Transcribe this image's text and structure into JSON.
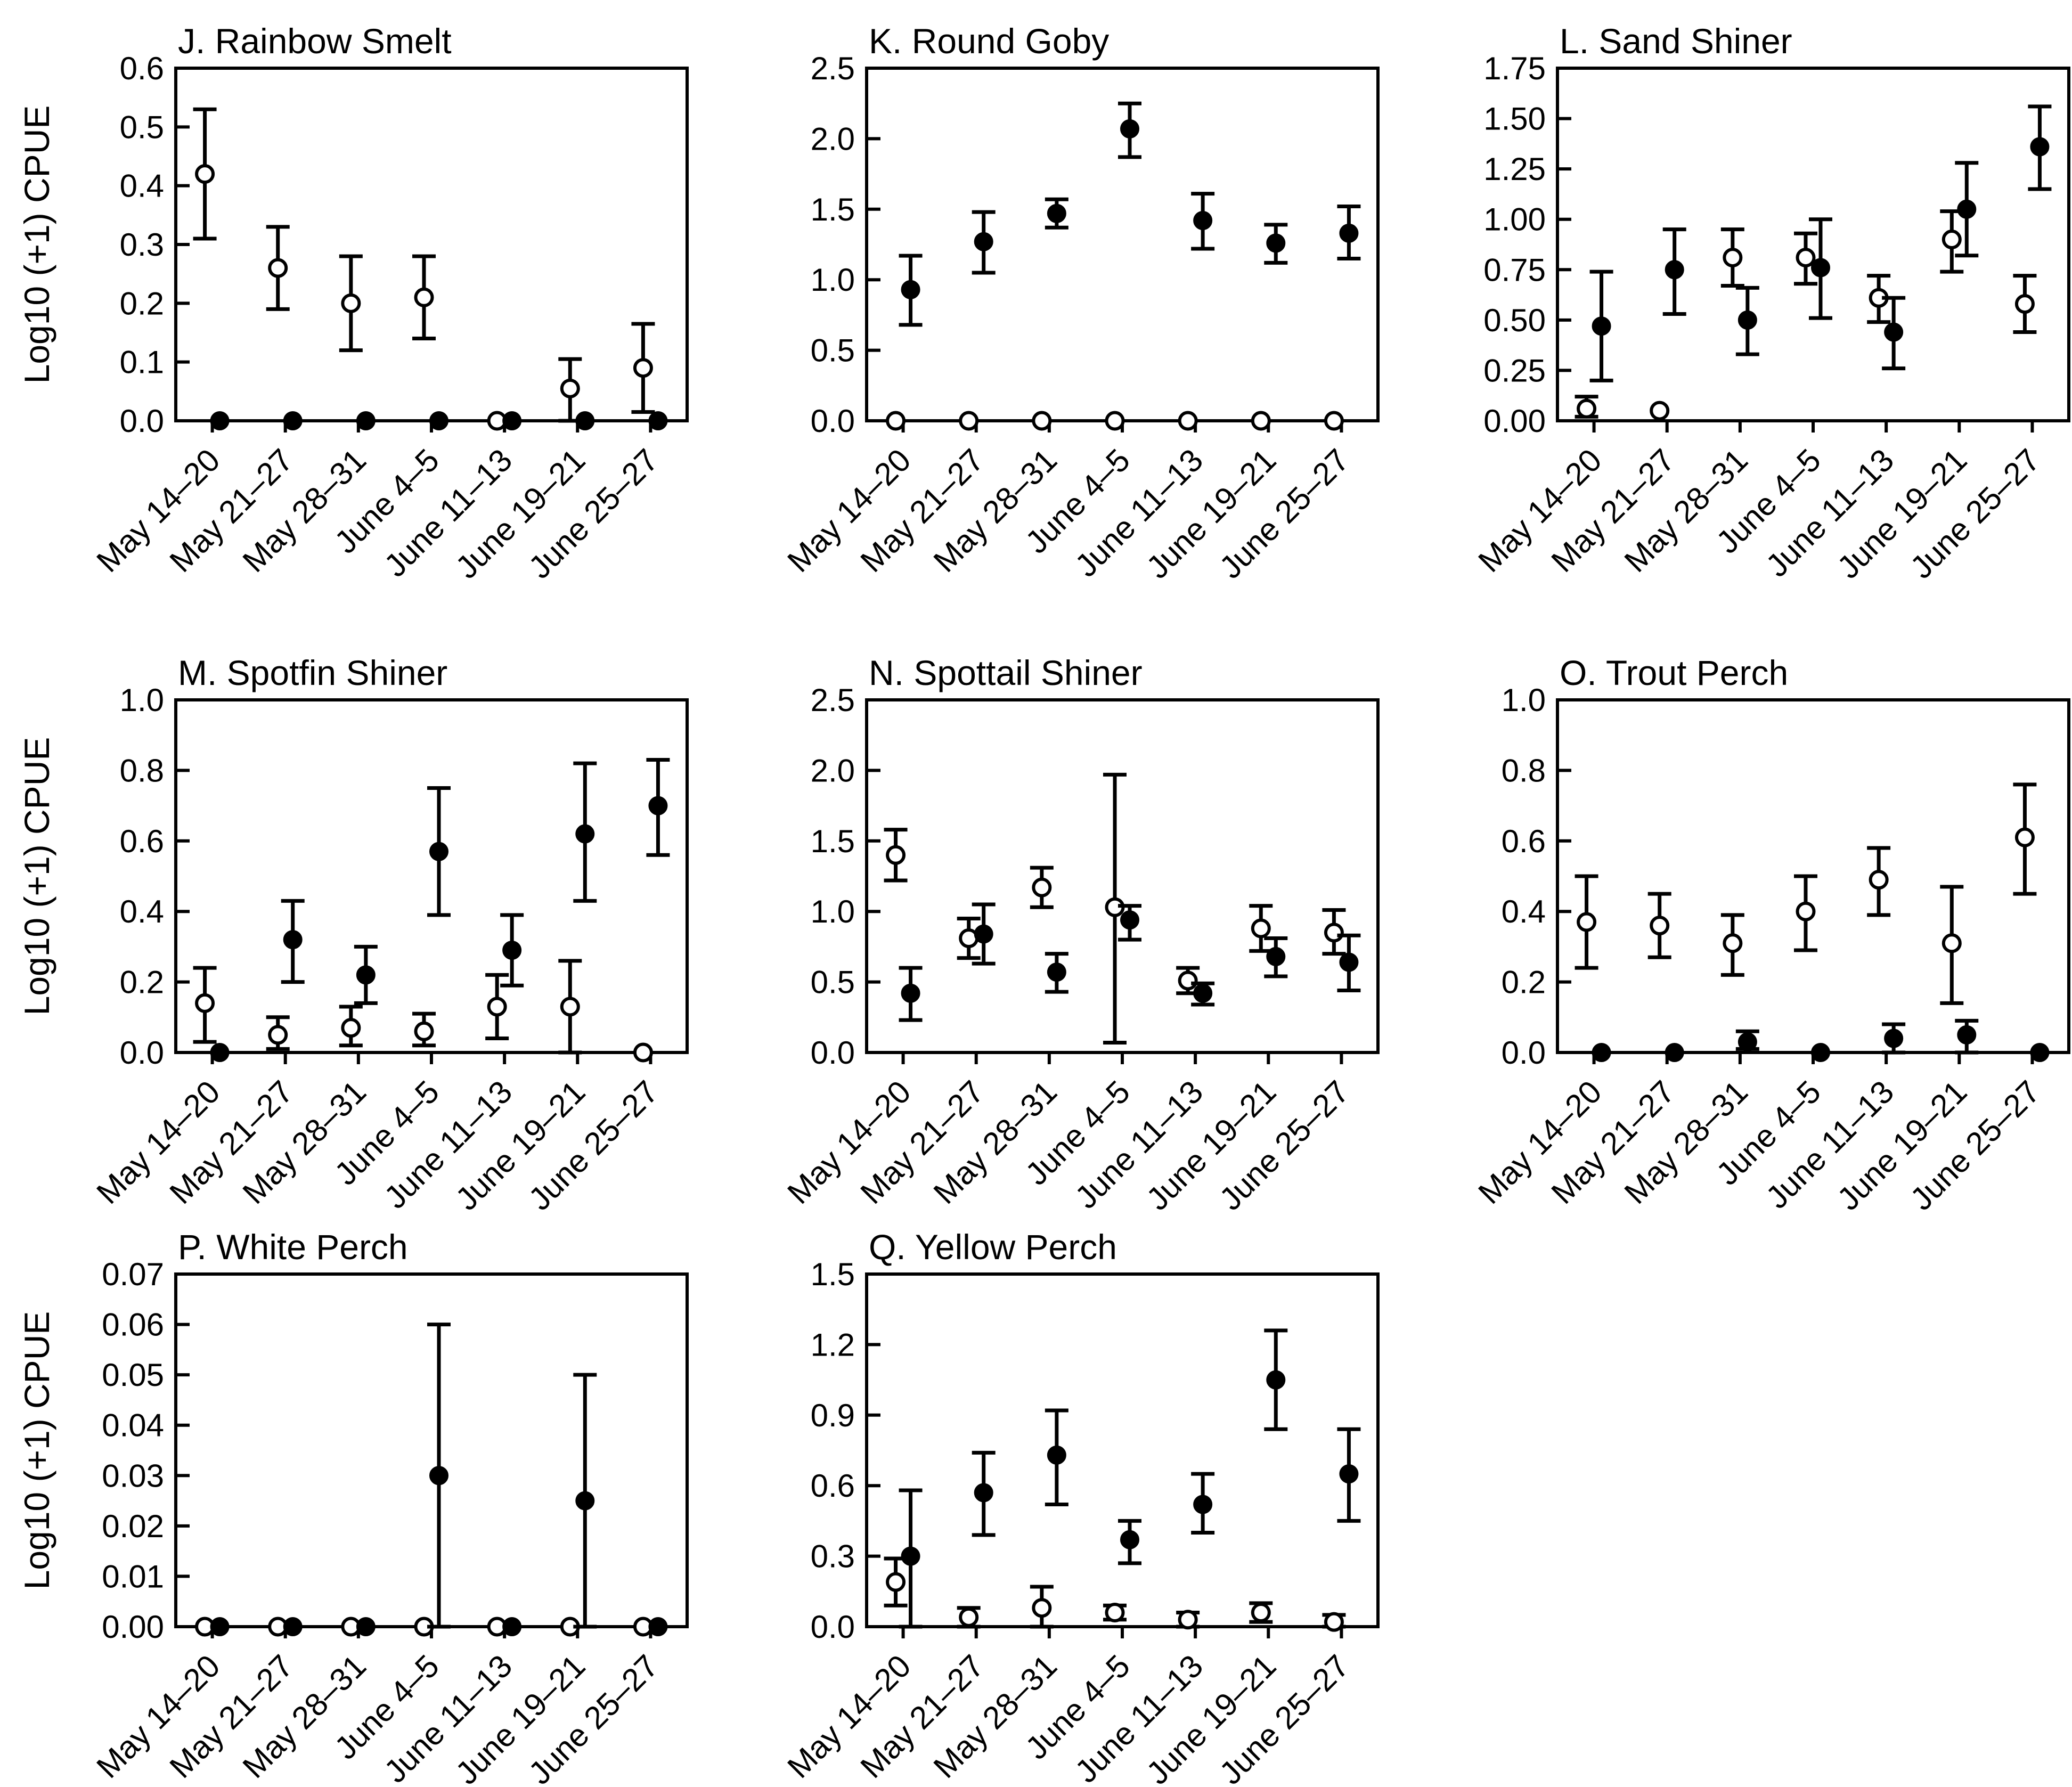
{
  "figure": {
    "ylabel": "Log10 (+1) CPUE",
    "background": "#ffffff",
    "ink": "#000000"
  },
  "categories": [
    "May 14–20",
    "May 21–27",
    "May 28–31",
    "June 4–5",
    "June 11–13",
    "June 19–21",
    "June 25–27"
  ],
  "chart_data": [
    {
      "panel": "J",
      "title": "J. Rainbow Smelt",
      "type": "scatter",
      "row": 1,
      "col": 1,
      "show_ylabel": true,
      "ylim": [
        0,
        0.6
      ],
      "ystep": 0.1,
      "ydecimals": 1,
      "xlabel": "",
      "ylabel": "Log10 (+1) CPUE",
      "grid": false,
      "series": [
        {
          "name": "open-circle",
          "marker": "open",
          "values": [
            0.42,
            0.26,
            0.2,
            0.21,
            0.0,
            0.055,
            0.09
          ],
          "err_lo": [
            0.31,
            0.19,
            0.12,
            0.14,
            0.0,
            0.0,
            0.015
          ],
          "err_hi": [
            0.53,
            0.33,
            0.28,
            0.28,
            0.0,
            0.105,
            0.165
          ]
        },
        {
          "name": "filled-circle",
          "marker": "filled",
          "values": [
            0,
            0,
            0,
            0,
            0,
            0,
            0
          ],
          "err_lo": [
            0,
            0,
            0,
            0,
            0,
            0,
            0
          ],
          "err_hi": [
            0,
            0,
            0,
            0,
            0,
            0,
            0
          ]
        }
      ]
    },
    {
      "panel": "K",
      "title": "K. Round Goby",
      "type": "scatter",
      "row": 1,
      "col": 2,
      "show_ylabel": false,
      "ylim": [
        0,
        2.5
      ],
      "ystep": 0.5,
      "ydecimals": 1,
      "xlabel": "",
      "ylabel": "",
      "grid": false,
      "series": [
        {
          "name": "open-circle",
          "marker": "open",
          "values": [
            0,
            0,
            0,
            0,
            0,
            0,
            0
          ],
          "err_lo": [
            0,
            0,
            0,
            0,
            0,
            0,
            0
          ],
          "err_hi": [
            0,
            0,
            0,
            0,
            0,
            0,
            0
          ]
        },
        {
          "name": "filled-circle",
          "marker": "filled",
          "values": [
            0.93,
            1.27,
            1.47,
            2.07,
            1.42,
            1.26,
            1.33
          ],
          "err_lo": [
            0.68,
            1.05,
            1.37,
            1.87,
            1.22,
            1.12,
            1.15
          ],
          "err_hi": [
            1.17,
            1.48,
            1.57,
            2.25,
            1.61,
            1.39,
            1.52
          ]
        }
      ]
    },
    {
      "panel": "L",
      "title": "L. Sand Shiner",
      "type": "scatter",
      "row": 1,
      "col": 3,
      "show_ylabel": false,
      "ylim": [
        0,
        1.75
      ],
      "ystep": 0.25,
      "ydecimals": 2,
      "xlabel": "",
      "ylabel": "",
      "grid": false,
      "series": [
        {
          "name": "open-circle",
          "marker": "open",
          "values": [
            0.06,
            0.05,
            0.81,
            0.81,
            0.61,
            0.9,
            0.58
          ],
          "err_lo": [
            0.02,
            0.05,
            0.67,
            0.68,
            0.49,
            0.74,
            0.44
          ],
          "err_hi": [
            0.12,
            0.05,
            0.95,
            0.93,
            0.72,
            1.04,
            0.72
          ]
        },
        {
          "name": "filled-circle",
          "marker": "filled",
          "values": [
            0.47,
            0.75,
            0.5,
            0.76,
            0.44,
            1.05,
            1.36
          ],
          "err_lo": [
            0.2,
            0.53,
            0.33,
            0.51,
            0.26,
            0.82,
            1.15
          ],
          "err_hi": [
            0.74,
            0.95,
            0.66,
            1.0,
            0.61,
            1.28,
            1.56
          ]
        }
      ]
    },
    {
      "panel": "M",
      "title": "M. Spotfin Shiner",
      "type": "scatter",
      "row": 2,
      "col": 1,
      "show_ylabel": true,
      "ylim": [
        0,
        1.0
      ],
      "ystep": 0.2,
      "ydecimals": 1,
      "xlabel": "",
      "ylabel": "Log10 (+1) CPUE",
      "grid": false,
      "series": [
        {
          "name": "open-circle",
          "marker": "open",
          "values": [
            0.14,
            0.05,
            0.07,
            0.06,
            0.13,
            0.13,
            0.0
          ],
          "err_lo": [
            0.03,
            0.01,
            0.02,
            0.02,
            0.04,
            0.0,
            0.0
          ],
          "err_hi": [
            0.24,
            0.1,
            0.13,
            0.11,
            0.22,
            0.26,
            0.0
          ]
        },
        {
          "name": "filled-circle",
          "marker": "filled",
          "values": [
            0.0,
            0.32,
            0.22,
            0.57,
            0.29,
            0.62,
            0.7
          ],
          "err_lo": [
            0.0,
            0.2,
            0.14,
            0.39,
            0.19,
            0.43,
            0.56
          ],
          "err_hi": [
            0.0,
            0.43,
            0.3,
            0.75,
            0.39,
            0.82,
            0.83
          ]
        }
      ]
    },
    {
      "panel": "N",
      "title": "N. Spottail Shiner",
      "type": "scatter",
      "row": 2,
      "col": 2,
      "show_ylabel": false,
      "ylim": [
        0,
        2.5
      ],
      "ystep": 0.5,
      "ydecimals": 1,
      "xlabel": "",
      "ylabel": "",
      "grid": false,
      "series": [
        {
          "name": "open-circle",
          "marker": "open",
          "values": [
            1.4,
            0.81,
            1.17,
            1.03,
            0.51,
            0.88,
            0.85
          ],
          "err_lo": [
            1.22,
            0.67,
            1.03,
            0.07,
            0.42,
            0.72,
            0.7
          ],
          "err_hi": [
            1.58,
            0.95,
            1.31,
            1.97,
            0.6,
            1.04,
            1.01
          ]
        },
        {
          "name": "filled-circle",
          "marker": "filled",
          "values": [
            0.42,
            0.84,
            0.57,
            0.94,
            0.42,
            0.68,
            0.64
          ],
          "err_lo": [
            0.23,
            0.63,
            0.43,
            0.8,
            0.34,
            0.54,
            0.44
          ],
          "err_hi": [
            0.6,
            1.05,
            0.7,
            1.04,
            0.49,
            0.81,
            0.83
          ]
        }
      ]
    },
    {
      "panel": "O",
      "title": "O. Trout Perch",
      "type": "scatter",
      "row": 2,
      "col": 3,
      "show_ylabel": false,
      "ylim": [
        0,
        1.0
      ],
      "ystep": 0.2,
      "ydecimals": 1,
      "xlabel": "",
      "ylabel": "",
      "grid": false,
      "series": [
        {
          "name": "open-circle",
          "marker": "open",
          "values": [
            0.37,
            0.36,
            0.31,
            0.4,
            0.49,
            0.31,
            0.61
          ],
          "err_lo": [
            0.24,
            0.27,
            0.22,
            0.29,
            0.39,
            0.14,
            0.45
          ],
          "err_hi": [
            0.5,
            0.45,
            0.39,
            0.5,
            0.58,
            0.47,
            0.76
          ]
        },
        {
          "name": "filled-circle",
          "marker": "filled",
          "values": [
            0.0,
            0.0,
            0.03,
            0.0,
            0.04,
            0.05,
            0.0
          ],
          "err_lo": [
            0.0,
            0.0,
            0.01,
            0.0,
            0.0,
            0.0,
            0.0
          ],
          "err_hi": [
            0.0,
            0.0,
            0.06,
            0.0,
            0.08,
            0.09,
            0.0
          ]
        }
      ]
    },
    {
      "panel": "P",
      "title": "P. White Perch",
      "type": "scatter",
      "row": 3,
      "col": 1,
      "show_ylabel": true,
      "ylim": [
        0,
        0.07
      ],
      "ystep": 0.01,
      "ydecimals": 2,
      "xlabel": "",
      "ylabel": "Log10 (+1) CPUE",
      "grid": false,
      "series": [
        {
          "name": "open-circle",
          "marker": "open",
          "values": [
            0,
            0,
            0,
            0,
            0,
            0,
            0
          ],
          "err_lo": [
            0,
            0,
            0,
            0,
            0,
            0,
            0
          ],
          "err_hi": [
            0,
            0,
            0,
            0,
            0,
            0,
            0
          ]
        },
        {
          "name": "filled-circle",
          "marker": "filled",
          "values": [
            0.0,
            0.0,
            0.0,
            0.03,
            0.0,
            0.025,
            0.0
          ],
          "err_lo": [
            0.0,
            0.0,
            0.0,
            0.0,
            0.0,
            0.0,
            0.0
          ],
          "err_hi": [
            0.0,
            0.0,
            0.0,
            0.06,
            0.0,
            0.05,
            0.0
          ]
        }
      ]
    },
    {
      "panel": "Q",
      "title": "Q. Yellow Perch",
      "type": "scatter",
      "row": 3,
      "col": 2,
      "show_ylabel": false,
      "ylim": [
        0,
        1.5
      ],
      "ystep": 0.3,
      "ydecimals": 1,
      "xlabel": "",
      "ylabel": "",
      "grid": false,
      "series": [
        {
          "name": "open-circle",
          "marker": "open",
          "values": [
            0.19,
            0.04,
            0.08,
            0.06,
            0.03,
            0.06,
            0.02
          ],
          "err_lo": [
            0.09,
            0.0,
            0.0,
            0.03,
            0.0,
            0.02,
            0.0
          ],
          "err_hi": [
            0.29,
            0.08,
            0.17,
            0.09,
            0.06,
            0.1,
            0.05
          ]
        },
        {
          "name": "filled-circle",
          "marker": "filled",
          "values": [
            0.3,
            0.57,
            0.73,
            0.37,
            0.52,
            1.05,
            0.65
          ],
          "err_lo": [
            0.0,
            0.39,
            0.52,
            0.27,
            0.4,
            0.84,
            0.45
          ],
          "err_hi": [
            0.58,
            0.74,
            0.92,
            0.45,
            0.65,
            1.26,
            0.84
          ]
        }
      ]
    }
  ]
}
